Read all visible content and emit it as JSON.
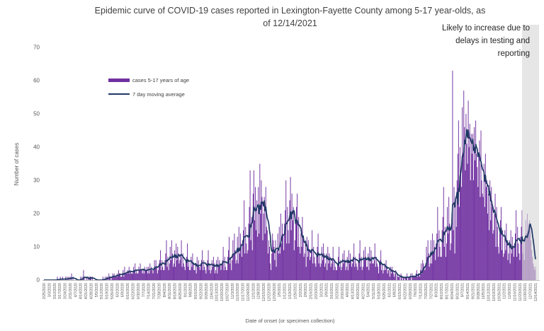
{
  "title": {
    "line1": "Epidemic curve of COVID-19 cases reported in Lexington-Fayette County among 5-17 year-olds, as",
    "line2": "of 12/14/2021"
  },
  "annotation": {
    "lines": [
      "Likely to increase due to",
      "delays in testing and",
      "reporting"
    ]
  },
  "legend": [
    {
      "label": "cases 5-17 years of age",
      "type": "bar"
    },
    {
      "label": "7 day moving average",
      "type": "line"
    }
  ],
  "y_axis": {
    "title": "Number of cases",
    "ticks": [
      0,
      10,
      20,
      30,
      40,
      50,
      60,
      70
    ],
    "max": 70
  },
  "x_axis": {
    "title": "Date of onset (or specimen collection)",
    "labels": [
      "2/25/2020",
      "3/3/2020",
      "3/10/2020",
      "3/17/2020",
      "3/24/2020",
      "3/31/2020",
      "4/7/2020",
      "4/14/2020",
      "4/21/2020",
      "4/28/2020",
      "5/5/2020",
      "5/12/2020",
      "5/19/2020",
      "5/26/2020",
      "6/2/2020",
      "6/9/2020",
      "6/16/2020",
      "6/23/2020",
      "6/30/2020",
      "7/7/2020",
      "7/14/2020",
      "7/21/2020",
      "7/28/2020",
      "8/4/2020",
      "8/11/2020",
      "8/18/2020",
      "8/25/2020",
      "9/1/2020",
      "9/8/2020",
      "9/15/2020",
      "9/22/2020",
      "9/29/2020",
      "10/6/2020",
      "10/13/2020",
      "10/20/2020",
      "10/27/2020",
      "11/3/2020",
      "11/10/2020",
      "11/17/2020",
      "11/24/2020",
      "12/1/2020",
      "12/8/2020",
      "12/15/2020",
      "12/22/2020",
      "12/29/2020",
      "1/5/2021",
      "1/12/2021",
      "1/19/2021",
      "1/26/2021",
      "2/2/2021",
      "2/9/2021",
      "2/16/2021",
      "2/23/2021",
      "3/2/2021",
      "3/9/2021",
      "3/16/2021",
      "3/23/2021",
      "3/30/2021",
      "4/6/2021",
      "4/13/2021",
      "4/20/2021",
      "4/27/2021",
      "5/4/2021",
      "5/11/2021",
      "5/18/2021",
      "5/25/2021",
      "6/1/2021",
      "6/8/2021",
      "6/15/2021",
      "6/22/2021",
      "6/29/2021",
      "7/6/2021",
      "7/13/2021",
      "7/20/2021",
      "7/27/2021",
      "8/3/2021",
      "8/10/2021",
      "8/17/2021",
      "8/24/2021",
      "8/31/2021",
      "9/7/2021",
      "9/14/2021",
      "9/21/2021",
      "9/28/2021",
      "10/5/2021",
      "10/12/2021",
      "10/19/2021",
      "10/26/2021",
      "11/2/2021",
      "11/9/2021",
      "11/16/2021",
      "11/23/2021",
      "11/30/2021",
      "12/7/2021",
      "12/14/2021"
    ]
  },
  "colors": {
    "bars": "#7030A0",
    "ma_line": "#1F3864",
    "band": "#D9D9D9",
    "axis": "#BFBFBF",
    "tick_text": "#595959",
    "title_text": "#3f3f3f"
  },
  "chart_data": {
    "type": "bar",
    "title": "Epidemic curve of COVID-19 cases reported in Lexington-Fayette County among 5-17 year-olds, as of 12/14/2021",
    "xlabel": "Date of onset (or specimen collection)",
    "ylabel": "Number of cases",
    "ylim": [
      0,
      70
    ],
    "grid": false,
    "legend_position": "upper-left-inside",
    "start_date": "2/25/2020",
    "end_date": "12/14/2021",
    "frequency": "daily",
    "x_label_interval_days": 7,
    "bar_series_name": "cases 5-17 years of age",
    "line_series_name": "7 day moving average",
    "line_series_rule": "trailing 7-day mean of daily_values",
    "shaded_region": {
      "start_index": 640,
      "start_date": "11/26/2021",
      "end_date": "12/14/2021",
      "note": "Likely to increase due to delays in testing and reporting"
    },
    "daily_values": [
      0,
      0,
      0,
      0,
      0,
      0,
      0,
      0,
      0,
      0,
      0,
      0,
      0,
      0,
      0,
      0,
      0,
      0,
      1,
      0,
      0,
      0,
      1,
      0,
      0,
      1,
      0,
      0,
      0,
      1,
      0,
      1,
      0,
      1,
      0,
      1,
      0,
      2,
      0,
      1,
      0,
      0,
      0,
      0,
      0,
      0,
      0,
      0,
      0,
      1,
      0,
      1,
      0,
      3,
      1,
      0,
      0,
      1,
      0,
      1,
      0,
      1,
      1,
      1,
      0,
      1,
      0,
      0,
      0,
      0,
      0,
      0,
      0,
      0,
      0,
      0,
      0,
      0,
      0,
      1,
      0,
      0,
      1,
      0,
      1,
      1,
      0,
      2,
      1,
      1,
      0,
      1,
      2,
      1,
      2,
      1,
      1,
      1,
      2,
      1,
      3,
      2,
      2,
      1,
      1,
      2,
      3,
      1,
      4,
      2,
      2,
      2,
      3,
      2,
      4,
      2,
      3,
      2,
      2,
      2,
      4,
      3,
      5,
      2,
      3,
      2,
      2,
      4,
      3,
      5,
      3,
      3,
      2,
      3,
      2,
      4,
      3,
      3,
      4,
      2,
      4,
      2,
      5,
      3,
      4,
      3,
      2,
      3,
      6,
      4,
      6,
      4,
      2,
      3,
      5,
      6,
      9,
      3,
      6,
      4,
      3,
      3,
      6,
      8,
      12,
      4,
      7,
      3,
      5,
      10,
      6,
      12,
      8,
      4,
      5,
      9,
      4,
      11,
      6,
      10,
      8,
      5,
      6,
      7,
      12,
      4,
      8,
      5,
      4,
      3,
      6,
      7,
      11,
      4,
      6,
      3,
      3,
      7,
      4,
      8,
      5,
      3,
      3,
      5,
      2,
      7,
      4,
      6,
      4,
      3,
      5,
      6,
      9,
      3,
      6,
      4,
      3,
      2,
      5,
      6,
      9,
      3,
      5,
      2,
      3,
      6,
      4,
      7,
      5,
      2,
      3,
      6,
      2,
      7,
      4,
      6,
      5,
      3,
      5,
      6,
      10,
      3,
      7,
      4,
      3,
      3,
      7,
      9,
      13,
      5,
      7,
      3,
      6,
      12,
      8,
      14,
      9,
      5,
      6,
      13,
      5,
      16,
      8,
      14,
      11,
      7,
      12,
      15,
      24,
      8,
      16,
      11,
      8,
      9,
      17,
      22,
      33,
      12,
      19,
      9,
      26,
      33,
      18,
      28,
      15,
      24,
      13,
      28,
      14,
      35,
      20,
      30,
      25,
      12,
      20,
      25,
      14,
      28,
      16,
      15,
      8,
      12,
      10,
      5,
      3,
      8,
      14,
      12,
      10,
      6,
      12,
      4,
      9,
      14,
      8,
      16,
      8,
      20,
      11,
      17,
      14,
      9,
      17,
      21,
      30,
      11,
      22,
      15,
      11,
      24,
      31,
      15,
      26,
      18,
      22,
      9,
      12,
      17,
      22,
      26,
      10,
      19,
      10,
      8,
      14,
      10,
      19,
      13,
      7,
      8,
      11,
      4,
      13,
      7,
      12,
      9,
      6,
      7,
      9,
      15,
      5,
      10,
      7,
      5,
      4,
      8,
      10,
      14,
      5,
      8,
      4,
      5,
      10,
      6,
      11,
      8,
      4,
      5,
      8,
      3,
      10,
      5,
      8,
      7,
      4,
      5,
      6,
      10,
      3,
      6,
      4,
      3,
      3,
      5,
      7,
      10,
      4,
      6,
      3,
      4,
      8,
      5,
      9,
      6,
      3,
      4,
      7,
      3,
      9,
      5,
      8,
      6,
      4,
      5,
      7,
      11,
      4,
      7,
      5,
      4,
      3,
      6,
      8,
      12,
      4,
      7,
      3,
      4,
      9,
      6,
      10,
      7,
      4,
      4,
      8,
      3,
      10,
      5,
      9,
      7,
      5,
      5,
      6,
      11,
      4,
      7,
      5,
      4,
      2,
      5,
      6,
      9,
      3,
      5,
      2,
      3,
      5,
      3,
      6,
      4,
      2,
      3,
      3,
      1,
      4,
      2,
      4,
      3,
      2,
      1,
      2,
      3,
      0,
      2,
      1,
      1,
      1,
      0,
      2,
      1,
      0,
      1,
      1,
      0,
      1,
      1,
      2,
      0,
      1,
      1,
      1,
      2,
      0,
      2,
      1,
      1,
      1,
      1,
      2,
      3,
      1,
      2,
      2,
      1,
      3,
      5,
      2,
      6,
      5,
      4,
      3,
      5,
      10,
      7,
      12,
      8,
      4,
      5,
      12,
      5,
      14,
      8,
      12,
      10,
      6,
      11,
      14,
      22,
      7,
      15,
      10,
      7,
      7,
      15,
      19,
      28,
      10,
      16,
      7,
      11,
      22,
      14,
      25,
      17,
      9,
      11,
      20,
      63,
      15,
      28,
      8,
      25,
      16,
      30,
      38,
      48,
      22,
      40,
      33,
      28,
      52,
      38,
      57,
      46,
      33,
      50,
      41,
      35,
      54,
      40,
      47,
      30,
      44,
      38,
      44,
      30,
      46,
      36,
      48,
      38,
      34,
      28,
      38,
      42,
      25,
      45,
      30,
      26,
      25,
      35,
      22,
      38,
      28,
      30,
      20,
      26,
      15,
      30,
      18,
      28,
      22,
      14,
      15,
      20,
      26,
      10,
      22,
      16,
      10,
      8,
      14,
      18,
      22,
      9,
      15,
      7,
      8,
      15,
      9,
      17,
      12,
      6,
      8,
      12,
      5,
      15,
      8,
      13,
      10,
      7,
      11,
      14,
      21,
      7,
      16,
      11,
      8,
      6,
      13,
      16,
      21,
      8,
      12,
      6,
      12,
      18,
      14,
      20,
      15,
      17,
      18,
      16,
      12,
      9,
      7,
      5,
      4,
      3,
      4
    ]
  }
}
